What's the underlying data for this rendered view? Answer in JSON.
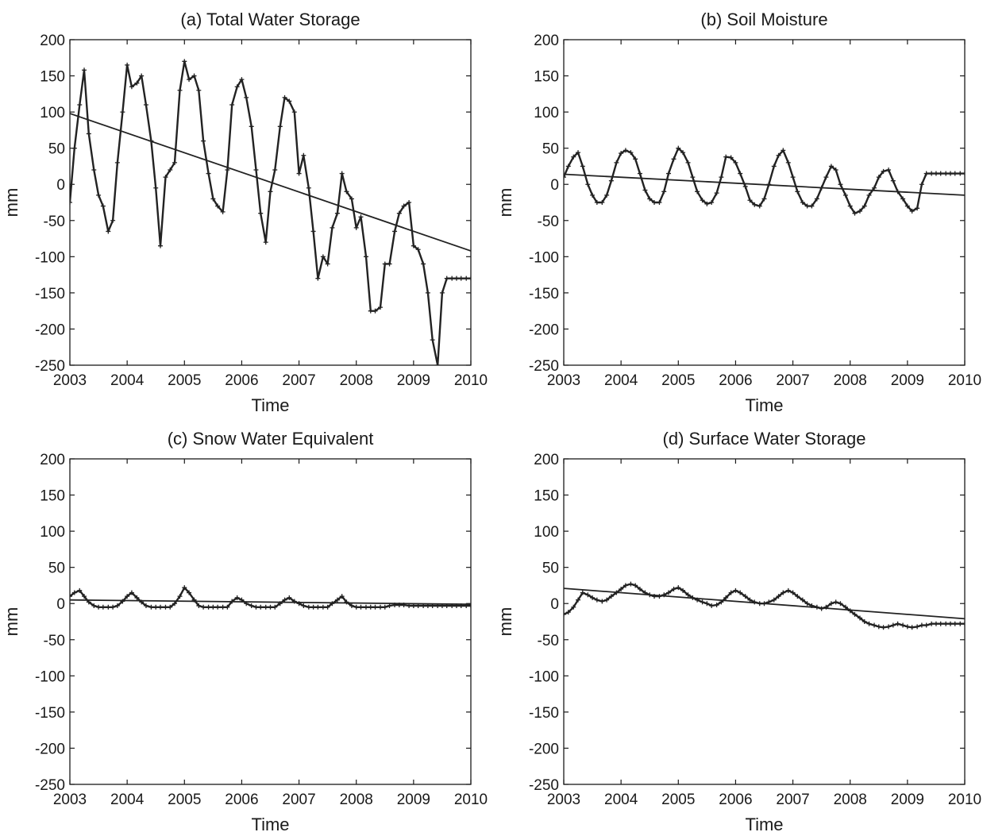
{
  "chart_data": [
    {
      "type": "line",
      "title": "(a) Total Water Storage",
      "xlabel": "Time",
      "ylabel": "mm",
      "xlim": [
        2003,
        2010
      ],
      "ylim": [
        -250,
        200
      ],
      "xticks": [
        2003,
        2004,
        2005,
        2006,
        2007,
        2008,
        2009,
        2010
      ],
      "yticks": [
        200,
        150,
        100,
        50,
        0,
        -50,
        -100,
        -150,
        -200,
        -250
      ],
      "grid": false,
      "series": [
        {
          "markers": true,
          "x": [
            2003.0,
            2003.08,
            2003.17,
            2003.25,
            2003.33,
            2003.42,
            2003.5,
            2003.58,
            2003.67,
            2003.75,
            2003.83,
            2003.92,
            2004.0,
            2004.08,
            2004.17,
            2004.25,
            2004.33,
            2004.42,
            2004.5,
            2004.58,
            2004.67,
            2004.75,
            2004.83,
            2004.92,
            2005.0,
            2005.08,
            2005.17,
            2005.25,
            2005.33,
            2005.42,
            2005.5,
            2005.58,
            2005.67,
            2005.75,
            2005.83,
            2005.92,
            2006.0,
            2006.08,
            2006.17,
            2006.25,
            2006.33,
            2006.42,
            2006.5,
            2006.58,
            2006.67,
            2006.75,
            2006.83,
            2006.92,
            2007.0,
            2007.08,
            2007.17,
            2007.25,
            2007.33,
            2007.42,
            2007.5,
            2007.58,
            2007.67,
            2007.75,
            2007.83,
            2007.92,
            2008.0,
            2008.08,
            2008.17,
            2008.25,
            2008.33,
            2008.42,
            2008.5,
            2008.58,
            2008.67,
            2008.75,
            2008.83,
            2008.92,
            2009.0,
            2009.08,
            2009.17,
            2009.25,
            2009.33,
            2009.42,
            2009.5,
            2009.58,
            2009.67,
            2009.75,
            2009.83,
            2009.92,
            2010.0
          ],
          "y": [
            -25,
            50,
            110,
            158,
            70,
            20,
            -15,
            -30,
            -65,
            -50,
            30,
            100,
            165,
            135,
            140,
            150,
            110,
            60,
            -5,
            -85,
            10,
            20,
            30,
            130,
            170,
            145,
            150,
            130,
            60,
            15,
            -20,
            -30,
            -38,
            20,
            110,
            135,
            145,
            120,
            80,
            20,
            -40,
            -80,
            -10,
            20,
            80,
            120,
            115,
            100,
            15,
            40,
            -5,
            -65,
            -130,
            -100,
            -110,
            -60,
            -40,
            15,
            -10,
            -20,
            -60,
            -45,
            -100,
            -175,
            -175,
            -170,
            -110,
            -110,
            -65,
            -40,
            -30,
            -25,
            -85,
            -90,
            -110,
            -150,
            -215,
            -250,
            -150,
            -130,
            -130,
            -130,
            -130,
            -130,
            -130
          ],
          "line_style": "solid"
        },
        {
          "x": [
            2003,
            2010
          ],
          "y": [
            98,
            -92
          ],
          "line_style": "solid"
        }
      ]
    },
    {
      "type": "line",
      "title": "(b) Soil Moisture",
      "xlabel": "Time",
      "ylabel": "mm",
      "xlim": [
        2003,
        2010
      ],
      "ylim": [
        -250,
        200
      ],
      "xticks": [
        2003,
        2004,
        2005,
        2006,
        2007,
        2008,
        2009,
        2010
      ],
      "yticks": [
        200,
        150,
        100,
        50,
        0,
        -50,
        -100,
        -150,
        -200,
        -250
      ],
      "grid": false,
      "series": [
        {
          "markers": true,
          "x": [
            2003.0,
            2003.08,
            2003.17,
            2003.25,
            2003.33,
            2003.42,
            2003.5,
            2003.58,
            2003.67,
            2003.75,
            2003.83,
            2003.92,
            2004.0,
            2004.08,
            2004.17,
            2004.25,
            2004.33,
            2004.42,
            2004.5,
            2004.58,
            2004.67,
            2004.75,
            2004.83,
            2004.92,
            2005.0,
            2005.08,
            2005.17,
            2005.25,
            2005.33,
            2005.42,
            2005.5,
            2005.58,
            2005.67,
            2005.75,
            2005.83,
            2005.92,
            2006.0,
            2006.08,
            2006.17,
            2006.25,
            2006.33,
            2006.42,
            2006.5,
            2006.58,
            2006.67,
            2006.75,
            2006.83,
            2006.92,
            2007.0,
            2007.08,
            2007.17,
            2007.25,
            2007.33,
            2007.42,
            2007.5,
            2007.58,
            2007.67,
            2007.75,
            2007.83,
            2007.92,
            2008.0,
            2008.08,
            2008.17,
            2008.25,
            2008.33,
            2008.42,
            2008.5,
            2008.58,
            2008.67,
            2008.75,
            2008.83,
            2008.92,
            2009.0,
            2009.08,
            2009.17,
            2009.25,
            2009.33,
            2009.42,
            2009.5,
            2009.58,
            2009.67,
            2009.75,
            2009.83,
            2009.92,
            2010.0
          ],
          "y": [
            10,
            25,
            38,
            44,
            25,
            0,
            -15,
            -25,
            -25,
            -15,
            5,
            30,
            43,
            47,
            44,
            35,
            15,
            -8,
            -20,
            -25,
            -25,
            -10,
            15,
            35,
            50,
            44,
            30,
            10,
            -10,
            -22,
            -27,
            -25,
            -12,
            10,
            38,
            37,
            30,
            15,
            -3,
            -22,
            -28,
            -30,
            -20,
            0,
            25,
            40,
            47,
            30,
            10,
            -10,
            -25,
            -30,
            -30,
            -20,
            -5,
            10,
            25,
            20,
            0,
            -15,
            -30,
            -40,
            -37,
            -30,
            -15,
            -5,
            10,
            18,
            20,
            5,
            -10,
            -20,
            -30,
            -37,
            -33,
            0,
            15,
            15,
            15,
            15,
            15,
            15,
            15,
            15,
            15
          ],
          "line_style": "solid"
        },
        {
          "x": [
            2003,
            2010
          ],
          "y": [
            14,
            -15
          ],
          "line_style": "solid"
        }
      ]
    },
    {
      "type": "line",
      "title": "(c) Snow Water Equivalent",
      "xlabel": "Time",
      "ylabel": "mm",
      "xlim": [
        2003,
        2010
      ],
      "ylim": [
        -250,
        200
      ],
      "xticks": [
        2003,
        2004,
        2005,
        2006,
        2007,
        2008,
        2009,
        2010
      ],
      "yticks": [
        200,
        150,
        100,
        50,
        0,
        -50,
        -100,
        -150,
        -200,
        -250
      ],
      "grid": false,
      "series": [
        {
          "markers": true,
          "x": [
            2003.0,
            2003.08,
            2003.17,
            2003.25,
            2003.33,
            2003.42,
            2003.5,
            2003.58,
            2003.67,
            2003.75,
            2003.83,
            2003.92,
            2004.0,
            2004.08,
            2004.17,
            2004.25,
            2004.33,
            2004.42,
            2004.5,
            2004.58,
            2004.67,
            2004.75,
            2004.83,
            2004.92,
            2005.0,
            2005.08,
            2005.17,
            2005.25,
            2005.33,
            2005.42,
            2005.5,
            2005.58,
            2005.67,
            2005.75,
            2005.83,
            2005.92,
            2006.0,
            2006.08,
            2006.17,
            2006.25,
            2006.33,
            2006.42,
            2006.5,
            2006.58,
            2006.67,
            2006.75,
            2006.83,
            2006.92,
            2007.0,
            2007.08,
            2007.17,
            2007.25,
            2007.33,
            2007.42,
            2007.5,
            2007.58,
            2007.67,
            2007.75,
            2007.83,
            2007.92,
            2008.0,
            2008.08,
            2008.17,
            2008.25,
            2008.33,
            2008.42,
            2008.5,
            2008.58,
            2008.67,
            2008.75,
            2008.83,
            2008.92,
            2009.0,
            2009.08,
            2009.17,
            2009.25,
            2009.33,
            2009.42,
            2009.5,
            2009.58,
            2009.67,
            2009.75,
            2009.83,
            2009.92,
            2010.0
          ],
          "y": [
            10,
            15,
            18,
            10,
            2,
            -3,
            -5,
            -5,
            -5,
            -5,
            -3,
            3,
            10,
            15,
            8,
            2,
            -3,
            -5,
            -5,
            -5,
            -5,
            -5,
            0,
            10,
            22,
            15,
            5,
            -3,
            -5,
            -5,
            -5,
            -5,
            -5,
            -5,
            3,
            8,
            5,
            0,
            -3,
            -5,
            -5,
            -5,
            -5,
            -5,
            0,
            5,
            8,
            3,
            0,
            -3,
            -5,
            -5,
            -5,
            -5,
            -5,
            0,
            5,
            10,
            2,
            -3,
            -5,
            -5,
            -5,
            -5,
            -5,
            -5,
            -5,
            -3,
            -2,
            -2,
            -2,
            -3,
            -3,
            -3,
            -3,
            -3,
            -3,
            -3,
            -3,
            -3,
            -3,
            -3,
            -3,
            -3,
            -3
          ],
          "line_style": "solid"
        },
        {
          "x": [
            2003,
            2010
          ],
          "y": [
            5,
            -1
          ],
          "line_style": "solid"
        }
      ]
    },
    {
      "type": "line",
      "title": "(d) Surface Water Storage",
      "xlabel": "Time",
      "ylabel": "mm",
      "xlim": [
        2003,
        2010
      ],
      "ylim": [
        -250,
        200
      ],
      "xticks": [
        2003,
        2004,
        2005,
        2006,
        2007,
        2008,
        2009,
        2010
      ],
      "yticks": [
        200,
        150,
        100,
        50,
        0,
        -50,
        -100,
        -150,
        -200,
        -250
      ],
      "grid": false,
      "series": [
        {
          "markers": true,
          "x": [
            2003.0,
            2003.08,
            2003.17,
            2003.25,
            2003.33,
            2003.42,
            2003.5,
            2003.58,
            2003.67,
            2003.75,
            2003.83,
            2003.92,
            2004.0,
            2004.08,
            2004.17,
            2004.25,
            2004.33,
            2004.42,
            2004.5,
            2004.58,
            2004.67,
            2004.75,
            2004.83,
            2004.92,
            2005.0,
            2005.08,
            2005.17,
            2005.25,
            2005.33,
            2005.42,
            2005.5,
            2005.58,
            2005.67,
            2005.75,
            2005.83,
            2005.92,
            2006.0,
            2006.08,
            2006.17,
            2006.25,
            2006.33,
            2006.42,
            2006.5,
            2006.58,
            2006.67,
            2006.75,
            2006.83,
            2006.92,
            2007.0,
            2007.08,
            2007.17,
            2007.25,
            2007.33,
            2007.42,
            2007.5,
            2007.58,
            2007.67,
            2007.75,
            2007.83,
            2007.92,
            2008.0,
            2008.08,
            2008.17,
            2008.25,
            2008.33,
            2008.42,
            2008.5,
            2008.58,
            2008.67,
            2008.75,
            2008.83,
            2008.92,
            2009.0,
            2009.08,
            2009.17,
            2009.25,
            2009.33,
            2009.42,
            2009.5,
            2009.58,
            2009.67,
            2009.75,
            2009.83,
            2009.92,
            2010.0
          ],
          "y": [
            -15,
            -12,
            -5,
            5,
            15,
            12,
            8,
            5,
            3,
            5,
            10,
            15,
            20,
            25,
            27,
            25,
            20,
            15,
            12,
            10,
            10,
            12,
            15,
            20,
            22,
            18,
            12,
            8,
            5,
            2,
            0,
            -3,
            -2,
            2,
            8,
            15,
            18,
            15,
            10,
            5,
            2,
            0,
            0,
            2,
            5,
            10,
            15,
            18,
            15,
            10,
            5,
            0,
            -3,
            -5,
            -7,
            -5,
            0,
            2,
            0,
            -5,
            -10,
            -15,
            -20,
            -25,
            -28,
            -30,
            -32,
            -33,
            -32,
            -30,
            -28,
            -30,
            -32,
            -33,
            -32,
            -30,
            -30,
            -28,
            -28,
            -28,
            -28,
            -28,
            -28,
            -28,
            -28
          ],
          "line_style": "solid"
        },
        {
          "x": [
            2003,
            2010
          ],
          "y": [
            21,
            -21
          ],
          "line_style": "solid"
        }
      ]
    }
  ]
}
